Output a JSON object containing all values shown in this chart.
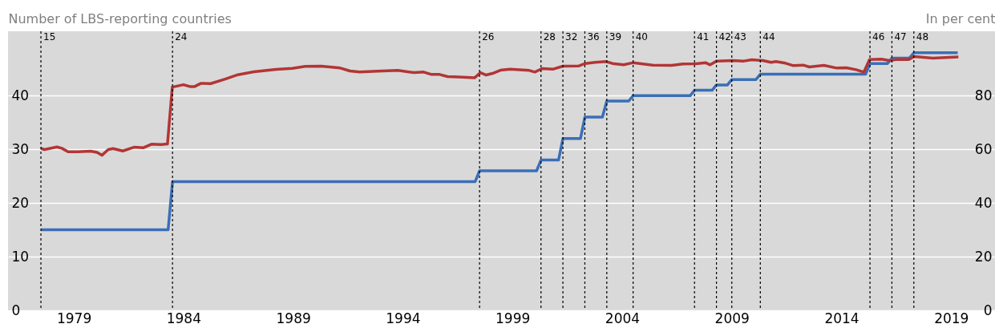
{
  "chart_data": {
    "type": "line",
    "ylabel": "Number of LBS-reporting countries",
    "y2label": "In per cent",
    "xlim": [
      1976,
      2021
    ],
    "xticks": [
      1979,
      1984,
      1989,
      1994,
      1999,
      2004,
      2009,
      2014,
      2019
    ],
    "ylim": [
      0,
      52
    ],
    "yticks": [
      0,
      10,
      20,
      30,
      40
    ],
    "y2lim": [
      0,
      104
    ],
    "y2ticks": [
      0,
      20,
      40,
      60,
      80
    ],
    "grid": "y",
    "marker": "none",
    "line_style": "solid",
    "series": [
      {
        "color": "#3a6fb7",
        "axis": "y",
        "x": [
          1977.5,
          1983.3,
          1983.5,
          1997.3,
          1997.5,
          2000.1,
          2000.3,
          2001.1,
          2001.3,
          2002.1,
          2002.3,
          2003.1,
          2003.3,
          2004.3,
          2004.5,
          2007.1,
          2007.3,
          2008.1,
          2008.3,
          2008.8,
          2009.0,
          2010.1,
          2010.3,
          2015.1,
          2015.3,
          2016.1,
          2016.3,
          2017.1,
          2017.3,
          2019.3
        ],
        "values": [
          15,
          15,
          24,
          24,
          26,
          26,
          28,
          28,
          32,
          32,
          36,
          36,
          39,
          39,
          40,
          40,
          41,
          41,
          42,
          42,
          43,
          43,
          44,
          44,
          46,
          46,
          47,
          47,
          48,
          48
        ]
      },
      {
        "color": "#b33535",
        "axis": "y2",
        "x": [
          1977.5,
          1977.66,
          1978.23,
          1978.45,
          1978.74,
          1979.18,
          1979.77,
          1980.06,
          1980.28,
          1980.57,
          1980.79,
          1981.23,
          1981.74,
          1982.18,
          1982.54,
          1982.98,
          1983.27,
          1983.49,
          1984.0,
          1984.29,
          1984.51,
          1984.8,
          1985.24,
          1985.9,
          1986.48,
          1987.21,
          1988.23,
          1988.96,
          1989.55,
          1990.28,
          1991.15,
          1991.59,
          1992.03,
          1992.83,
          1993.78,
          1994.51,
          1994.95,
          1995.31,
          1995.68,
          1996.04,
          1996.55,
          1997.28,
          1997.54,
          1997.8,
          1998.09,
          1998.45,
          1998.89,
          1999.77,
          2000.02,
          2000.35,
          2000.86,
          2001.3,
          2002.03,
          2002.32,
          2002.76,
          2003.27,
          2003.56,
          2004.07,
          2004.51,
          2005.39,
          2006.26,
          2006.77,
          2007.36,
          2007.8,
          2008.01,
          2008.31,
          2009.04,
          2009.55,
          2009.91,
          2010.42,
          2010.79,
          2011.01,
          2011.45,
          2011.81,
          2012.25,
          2012.54,
          2013.2,
          2013.78,
          2014.22,
          2014.66,
          2015.02,
          2015.28,
          2015.82,
          2016.19,
          2016.55,
          2017.07,
          2017.32,
          2018.16,
          2019.33
        ],
        "values": [
          60.4,
          59.9,
          60.9,
          60.4,
          59.1,
          59.1,
          59.3,
          58.9,
          57.8,
          59.9,
          60.3,
          59.4,
          60.8,
          60.6,
          61.9,
          61.8,
          62.0,
          83.2,
          84.1,
          83.4,
          83.4,
          84.6,
          84.5,
          86.2,
          87.8,
          88.9,
          89.8,
          90.2,
          90.9,
          91.0,
          90.3,
          89.2,
          88.8,
          89.1,
          89.4,
          88.6,
          88.8,
          87.9,
          87.9,
          87.1,
          87.0,
          86.7,
          88.6,
          87.7,
          88.3,
          89.5,
          89.9,
          89.4,
          88.8,
          90.1,
          89.9,
          91.0,
          91.1,
          92.0,
          92.4,
          92.7,
          92.0,
          91.5,
          92.3,
          91.4,
          91.3,
          91.8,
          91.9,
          92.3,
          91.5,
          92.9,
          93.1,
          92.9,
          93.4,
          93.1,
          92.4,
          92.7,
          92.1,
          91.2,
          91.4,
          90.7,
          91.3,
          90.3,
          90.4,
          89.7,
          88.8,
          93.5,
          93.6,
          93.1,
          93.5,
          93.5,
          94.6,
          94.0,
          94.4
        ]
      }
    ],
    "ref_lines": [
      {
        "axis": "x",
        "value": 1977.5,
        "color": "#000000",
        "line_style": "dashed"
      },
      {
        "axis": "x",
        "value": 1983.5,
        "color": "#000000",
        "line_style": "dashed"
      },
      {
        "axis": "x",
        "value": 1997.5,
        "color": "#000000",
        "line_style": "dashed"
      },
      {
        "axis": "x",
        "value": 2000.3,
        "color": "#000000",
        "line_style": "dashed"
      },
      {
        "axis": "x",
        "value": 2001.3,
        "color": "#000000",
        "line_style": "dashed"
      },
      {
        "axis": "x",
        "value": 2002.3,
        "color": "#000000",
        "line_style": "dashed"
      },
      {
        "axis": "x",
        "value": 2003.3,
        "color": "#000000",
        "line_style": "dashed"
      },
      {
        "axis": "x",
        "value": 2004.5,
        "color": "#000000",
        "line_style": "dashed"
      },
      {
        "axis": "x",
        "value": 2007.3,
        "color": "#000000",
        "line_style": "dashed"
      },
      {
        "axis": "x",
        "value": 2008.3,
        "color": "#000000",
        "line_style": "dashed"
      },
      {
        "axis": "x",
        "value": 2009.0,
        "color": "#000000",
        "line_style": "dashed"
      },
      {
        "axis": "x",
        "value": 2010.3,
        "color": "#000000",
        "line_style": "dashed"
      },
      {
        "axis": "x",
        "value": 2015.3,
        "color": "#000000",
        "line_style": "dashed"
      },
      {
        "axis": "x",
        "value": 2016.3,
        "color": "#000000",
        "line_style": "dashed"
      },
      {
        "axis": "x",
        "value": 2017.3,
        "color": "#000000",
        "line_style": "dashed"
      }
    ],
    "annotations": [
      {
        "text": "15",
        "x": 1977.5,
        "y": 51
      },
      {
        "text": "24",
        "x": 1983.5,
        "y": 51
      },
      {
        "text": "26",
        "x": 1997.5,
        "y": 51
      },
      {
        "text": "28",
        "x": 2000.3,
        "y": 51
      },
      {
        "text": "32",
        "x": 2001.3,
        "y": 51
      },
      {
        "text": "36",
        "x": 2002.3,
        "y": 51
      },
      {
        "text": "39",
        "x": 2003.3,
        "y": 51
      },
      {
        "text": "40",
        "x": 2004.5,
        "y": 51
      },
      {
        "text": "41",
        "x": 2007.3,
        "y": 51
      },
      {
        "text": "42",
        "x": 2008.3,
        "y": 51
      },
      {
        "text": "43",
        "x": 2009.0,
        "y": 51
      },
      {
        "text": "44",
        "x": 2010.3,
        "y": 51
      },
      {
        "text": "46",
        "x": 2015.3,
        "y": 51
      },
      {
        "text": "47",
        "x": 2016.3,
        "y": 51
      },
      {
        "text": "48",
        "x": 2017.3,
        "y": 51
      }
    ]
  }
}
